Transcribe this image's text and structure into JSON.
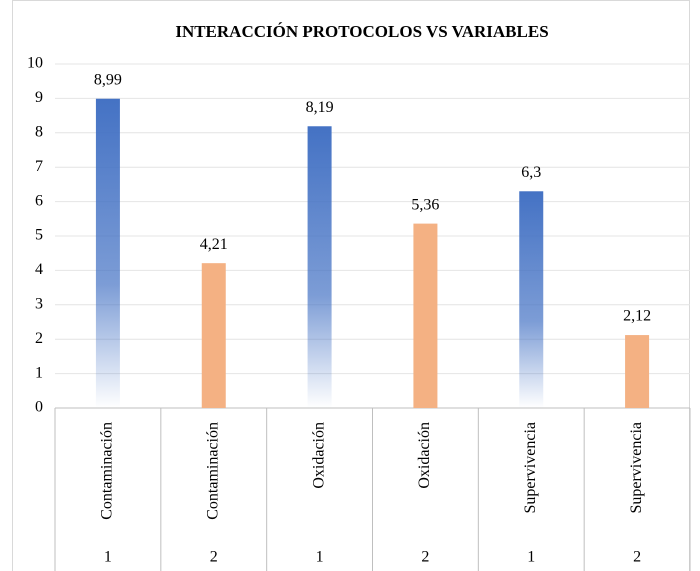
{
  "chart_data": {
    "type": "bar",
    "title": "INTERACCIÓN PROTOCOLOS VS VARIABLES",
    "categories": [
      {
        "label": "Contaminación",
        "protocol": "1"
      },
      {
        "label": "Contaminación",
        "protocol": "2"
      },
      {
        "label": "Oxidación",
        "protocol": "1"
      },
      {
        "label": "Oxidación",
        "protocol": "2"
      },
      {
        "label": "Supervivencia",
        "protocol": "1"
      },
      {
        "label": "Supervivencia",
        "protocol": "2"
      }
    ],
    "values": [
      8.99,
      4.21,
      8.19,
      5.36,
      6.3,
      2.12
    ],
    "value_labels": [
      "8,99",
      "4,21",
      "8,19",
      "5,36",
      "6,3",
      "2,12"
    ],
    "colors": [
      "#4472c4",
      "#f4b183",
      "#4472c4",
      "#f4b183",
      "#4472c4",
      "#f4b183"
    ],
    "fills": [
      "gradient",
      "solid",
      "gradient",
      "solid",
      "gradient",
      "solid"
    ],
    "ylim": [
      0,
      10
    ],
    "yticks": [
      0,
      1,
      2,
      3,
      4,
      5,
      6,
      7,
      8,
      9,
      10
    ],
    "grid": true
  }
}
